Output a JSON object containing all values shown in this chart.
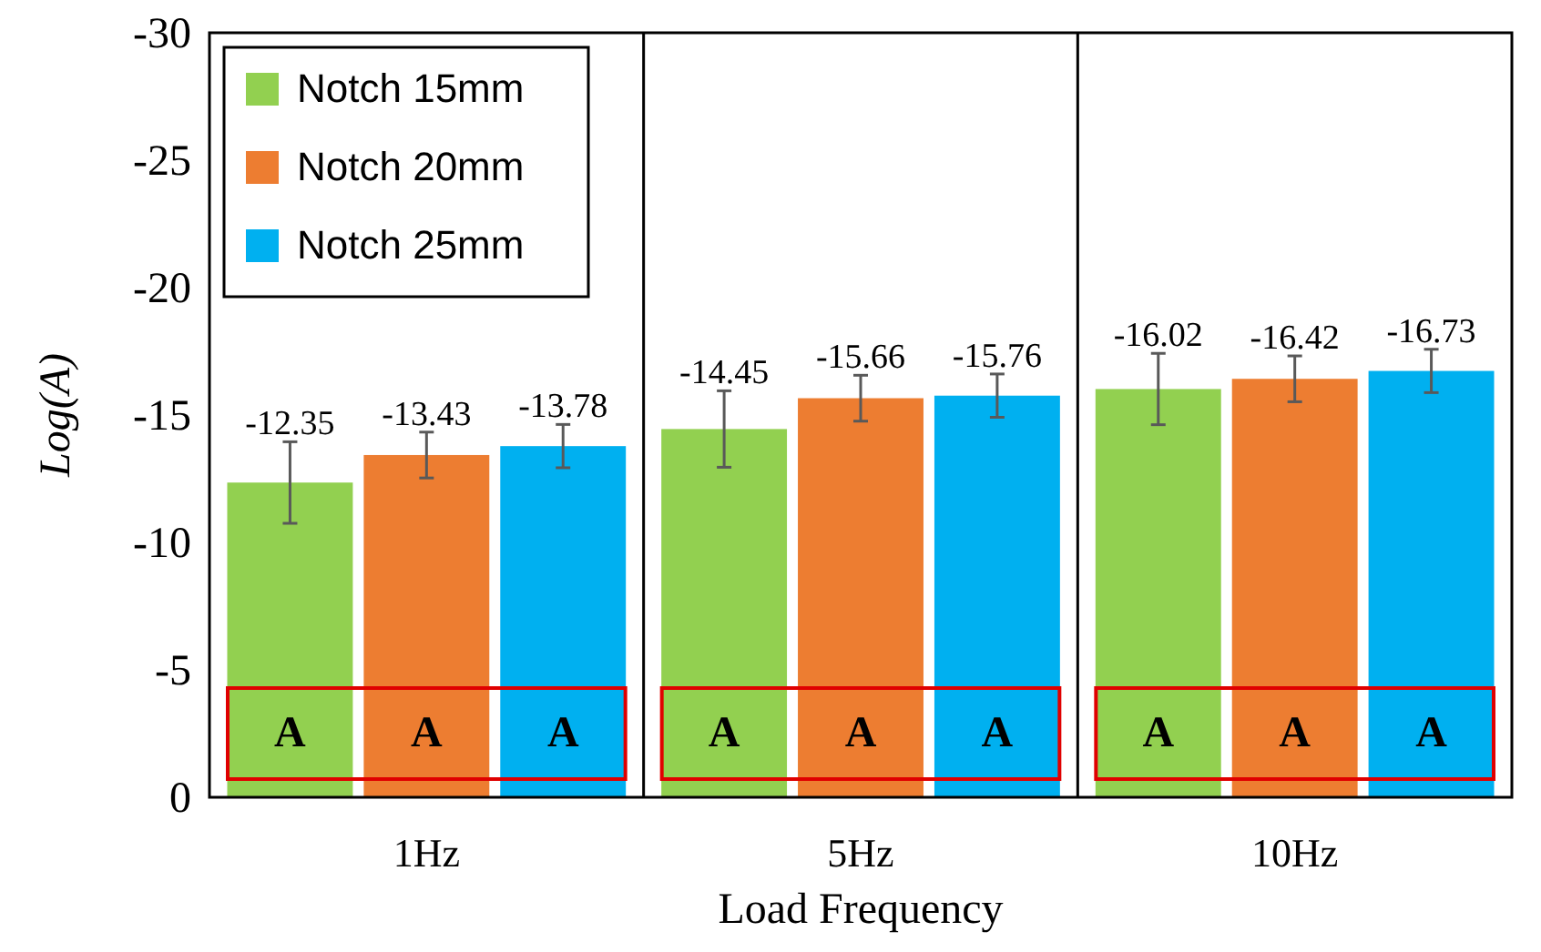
{
  "chart_data": {
    "type": "bar",
    "xlabel": "Load Frequency",
    "ylabel": "Log(A)",
    "categories": [
      "1Hz",
      "5Hz",
      "10Hz"
    ],
    "series": [
      {
        "name": "Notch 15mm",
        "color": "#92d050",
        "values": [
          -12.35,
          -14.45,
          -16.02
        ],
        "errors": [
          1.6,
          1.5,
          1.4
        ]
      },
      {
        "name": "Notch 20mm",
        "color": "#ed7d31",
        "values": [
          -13.43,
          -15.66,
          -16.42
        ],
        "errors": [
          0.9,
          0.9,
          0.9
        ]
      },
      {
        "name": "Notch 25mm",
        "color": "#00b0f0",
        "values": [
          -13.78,
          -15.76,
          -16.73
        ],
        "errors": [
          0.85,
          0.85,
          0.85
        ]
      }
    ],
    "ylim": [
      0,
      -30
    ],
    "yticks": [
      0,
      -5,
      -10,
      -15,
      -20,
      -25,
      -30
    ],
    "data_labels": true,
    "legend": "top left",
    "grid": false,
    "annotations": [
      "A",
      "A",
      "A",
      "A",
      "A",
      "A",
      "A",
      "A",
      "A"
    ]
  }
}
